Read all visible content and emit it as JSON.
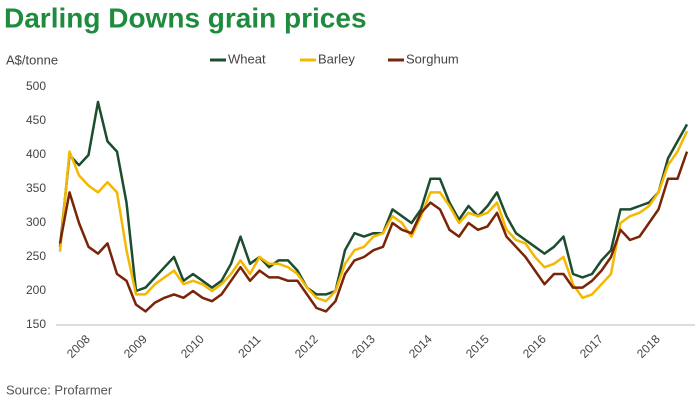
{
  "chart_data": {
    "type": "line",
    "title": "Darling Downs grain prices",
    "y_label": "A$/tonne",
    "source": "Source: Profarmer",
    "categories": [
      null,
      null,
      "2008",
      null,
      null,
      null,
      null,
      null,
      "2009",
      null,
      null,
      null,
      null,
      null,
      "2010",
      null,
      null,
      null,
      null,
      null,
      "2011",
      null,
      null,
      null,
      null,
      null,
      "2012",
      null,
      null,
      null,
      null,
      null,
      "2013",
      null,
      null,
      null,
      null,
      null,
      "2014",
      null,
      null,
      null,
      null,
      null,
      "2015",
      null,
      null,
      null,
      null,
      null,
      "2016",
      null,
      null,
      null,
      null,
      null,
      "2017",
      null,
      null,
      null,
      null,
      null,
      "2018",
      null,
      null,
      null,
      null
    ],
    "series": [
      {
        "name": "Wheat",
        "color": "#1b4d2e",
        "values": [
          265,
          400,
          385,
          400,
          478,
          420,
          405,
          330,
          200,
          205,
          220,
          235,
          250,
          215,
          225,
          215,
          205,
          215,
          240,
          280,
          240,
          250,
          235,
          245,
          245,
          230,
          205,
          195,
          195,
          200,
          260,
          285,
          280,
          285,
          285,
          320,
          310,
          300,
          320,
          365,
          365,
          330,
          305,
          325,
          310,
          325,
          345,
          310,
          285,
          275,
          265,
          255,
          265,
          280,
          225,
          220,
          225,
          245,
          260,
          320,
          320,
          325,
          330,
          345,
          395,
          420,
          445
        ]
      },
      {
        "name": "Barley",
        "color": "#f5b800",
        "values": [
          258,
          405,
          370,
          355,
          345,
          360,
          345,
          260,
          195,
          195,
          210,
          220,
          230,
          210,
          215,
          210,
          200,
          210,
          225,
          245,
          225,
          250,
          240,
          240,
          235,
          225,
          205,
          190,
          185,
          200,
          240,
          260,
          265,
          280,
          285,
          310,
          300,
          280,
          310,
          345,
          345,
          325,
          300,
          315,
          310,
          315,
          330,
          290,
          275,
          270,
          250,
          235,
          240,
          250,
          210,
          190,
          195,
          210,
          225,
          300,
          310,
          315,
          325,
          345,
          385,
          405,
          435
        ]
      },
      {
        "name": "Sorghum",
        "color": "#7a2408",
        "values": [
          270,
          345,
          300,
          265,
          255,
          270,
          225,
          215,
          180,
          170,
          183,
          190,
          195,
          190,
          200,
          190,
          185,
          195,
          215,
          235,
          215,
          230,
          220,
          220,
          215,
          215,
          195,
          175,
          170,
          185,
          225,
          245,
          250,
          260,
          265,
          300,
          290,
          285,
          315,
          330,
          320,
          290,
          280,
          300,
          290,
          295,
          315,
          280,
          265,
          250,
          230,
          210,
          225,
          225,
          205,
          205,
          215,
          230,
          250,
          290,
          275,
          280,
          300,
          320,
          365,
          365,
          405
        ]
      }
    ],
    "ylim": [
      150,
      500
    ],
    "yticks": [
      150,
      200,
      250,
      300,
      350,
      400,
      450,
      500
    ],
    "grid": false,
    "legend": "top"
  }
}
